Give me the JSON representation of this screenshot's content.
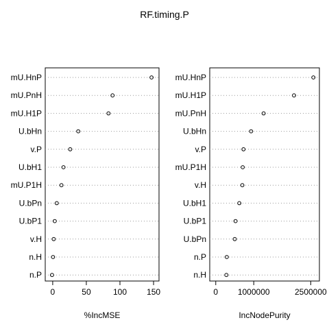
{
  "title": "RF.timing.P",
  "chart_data": [
    {
      "type": "scatter",
      "xlabel": "%IncMSE",
      "xticks": [
        0,
        50,
        100,
        150
      ],
      "xtick_labels": [
        "0",
        "50",
        "100",
        "150"
      ],
      "xlim": [
        -5,
        152
      ],
      "grid": "dotted horizontal per variable",
      "variables": [
        "mU.HnP",
        "mU.PnH",
        "mU.H1P",
        "U.bHn",
        "v.P",
        "U.bH1",
        "mU.P1H",
        "U.bPn",
        "U.bP1",
        "v.H",
        "n.H",
        "n.P"
      ],
      "values": [
        147,
        89,
        83,
        38,
        26,
        16,
        13,
        6,
        3,
        1.5,
        0.5,
        -1
      ]
    },
    {
      "type": "scatter",
      "xlabel": "IncNodePurity",
      "xticks": [
        0,
        1000000,
        2500000
      ],
      "xtick_labels": [
        "0",
        "1000000",
        "2500000"
      ],
      "xlim": [
        -50000,
        2620000
      ],
      "grid": "dotted horizontal per variable",
      "variables": [
        "mU.HnP",
        "mU.H1P",
        "mU.PnH",
        "U.bHn",
        "v.P",
        "mU.P1H",
        "v.H",
        "U.bH1",
        "U.bP1",
        "U.bPn",
        "n.P",
        "n.H"
      ],
      "values": [
        2570000,
        2060000,
        1260000,
        930000,
        730000,
        710000,
        700000,
        620000,
        520000,
        500000,
        290000,
        280000
      ]
    }
  ]
}
